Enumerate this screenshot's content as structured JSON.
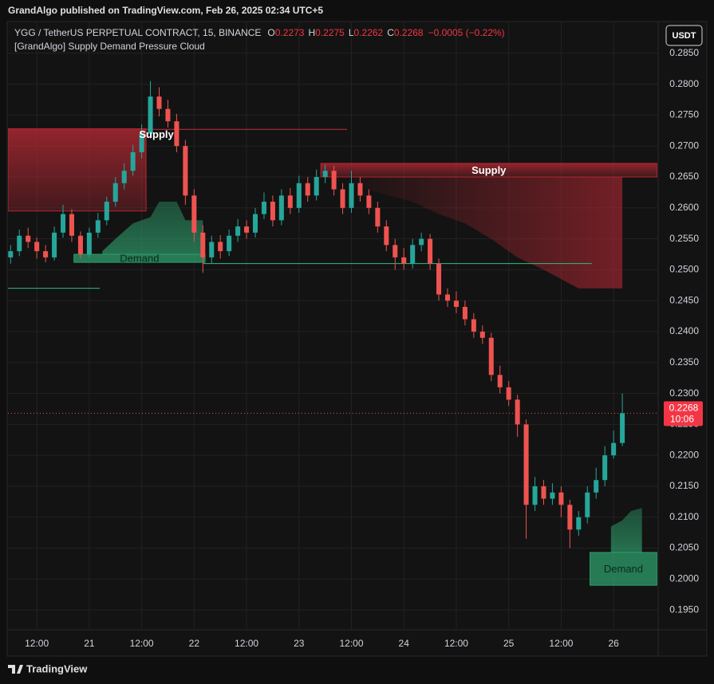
{
  "header": {
    "publisher": "GrandAlgo published on TradingView.com, Feb 26, 2025 02:34 UTC+5",
    "logo": "TradingView"
  },
  "chart_data": {
    "type": "candlestick",
    "symbol": "YGG / TetherUS PERPETUAL CONTRACT, 15, BINANCE",
    "ohlc_legend": [
      {
        "label": "O",
        "value": 0.2273
      },
      {
        "label": "H",
        "value": 0.2275
      },
      {
        "label": "L",
        "value": 0.2262
      },
      {
        "label": "C",
        "value": 0.2268
      }
    ],
    "change_label": "−0.0005 (−0.22%)",
    "indicator": "[GrandAlgo] Supply Demand Pressure Cloud",
    "currency": "USDT",
    "last_price": 0.2268,
    "countdown": "10:06",
    "up_color": "#26a69a",
    "down_color": "#ef5350",
    "grid": true,
    "xlim": [
      5.4,
      154.2
    ],
    "ylim": [
      0.1918,
      0.29
    ],
    "xticks": [
      {
        "value": 12,
        "label": "12:00"
      },
      {
        "value": 24,
        "label": "21"
      },
      {
        "value": 36,
        "label": "12:00"
      },
      {
        "value": 48,
        "label": "22"
      },
      {
        "value": 60,
        "label": "12:00"
      },
      {
        "value": 72,
        "label": "23"
      },
      {
        "value": 84,
        "label": "12:00"
      },
      {
        "value": 96,
        "label": "24"
      },
      {
        "value": 108,
        "label": "12:00"
      },
      {
        "value": 120,
        "label": "25"
      },
      {
        "value": 132,
        "label": "12:00"
      },
      {
        "value": 144,
        "label": "26"
      }
    ],
    "yticks": [
      {
        "value": 0.195,
        "label": "0.1950"
      },
      {
        "value": 0.2,
        "label": "0.2000"
      },
      {
        "value": 0.205,
        "label": "0.2050"
      },
      {
        "value": 0.21,
        "label": "0.2100"
      },
      {
        "value": 0.215,
        "label": "0.2150"
      },
      {
        "value": 0.22,
        "label": "0.2200"
      },
      {
        "value": 0.225,
        "label": "0.2250"
      },
      {
        "value": 0.23,
        "label": "0.2300"
      },
      {
        "value": 0.235,
        "label": "0.2350"
      },
      {
        "value": 0.24,
        "label": "0.2400"
      },
      {
        "value": 0.245,
        "label": "0.2450"
      },
      {
        "value": 0.25,
        "label": "0.2500"
      },
      {
        "value": 0.255,
        "label": "0.2550"
      },
      {
        "value": 0.26,
        "label": "0.2600"
      },
      {
        "value": 0.265,
        "label": "0.2650"
      },
      {
        "value": 0.27,
        "label": "0.2700"
      },
      {
        "value": 0.275,
        "label": "0.2750"
      },
      {
        "value": 0.28,
        "label": "0.2800"
      },
      {
        "value": 0.285,
        "label": "0.2850"
      }
    ],
    "x": [
      6,
      8,
      10,
      12,
      14,
      16,
      18,
      20,
      22,
      24,
      26,
      28,
      30,
      32,
      34,
      36,
      38,
      40,
      42,
      44,
      46,
      48,
      50,
      52,
      54,
      56,
      58,
      60,
      62,
      64,
      66,
      68,
      70,
      72,
      74,
      76,
      78,
      80,
      82,
      84,
      86,
      88,
      90,
      92,
      94,
      96,
      98,
      100,
      102,
      104,
      106,
      108,
      110,
      112,
      114,
      116,
      118,
      120,
      122,
      124,
      126,
      128,
      130,
      132,
      134,
      136,
      138,
      140,
      142,
      144,
      146
    ],
    "open": [
      0.252,
      0.253,
      0.2555,
      0.2545,
      0.253,
      0.252,
      0.256,
      0.259,
      0.2555,
      0.2525,
      0.256,
      0.258,
      0.261,
      0.264,
      0.266,
      0.269,
      0.272,
      0.278,
      0.276,
      0.274,
      0.27,
      0.262,
      0.256,
      0.252,
      0.2545,
      0.253,
      0.2555,
      0.257,
      0.256,
      0.259,
      0.261,
      0.258,
      0.262,
      0.26,
      0.264,
      0.262,
      0.265,
      0.266,
      0.263,
      0.26,
      0.264,
      0.262,
      0.26,
      0.257,
      0.254,
      0.252,
      0.251,
      0.254,
      0.255,
      0.251,
      0.246,
      0.245,
      0.244,
      0.242,
      0.24,
      0.239,
      0.233,
      0.231,
      0.229,
      0.225,
      0.212,
      0.215,
      0.213,
      0.214,
      0.212,
      0.208,
      0.21,
      0.214,
      0.216,
      0.22,
      0.222
    ],
    "high": [
      0.254,
      0.2565,
      0.2568,
      0.2552,
      0.254,
      0.257,
      0.2605,
      0.2598,
      0.2562,
      0.2568,
      0.2592,
      0.2618,
      0.265,
      0.2672,
      0.2702,
      0.2735,
      0.2805,
      0.2795,
      0.2775,
      0.2752,
      0.271,
      0.263,
      0.2572,
      0.2555,
      0.2556,
      0.2565,
      0.2582,
      0.258,
      0.26,
      0.2625,
      0.262,
      0.263,
      0.2632,
      0.2652,
      0.265,
      0.2662,
      0.267,
      0.2668,
      0.264,
      0.266,
      0.265,
      0.263,
      0.261,
      0.258,
      0.255,
      0.2535,
      0.255,
      0.256,
      0.2558,
      0.2518,
      0.247,
      0.2465,
      0.245,
      0.243,
      0.241,
      0.2398,
      0.2345,
      0.232,
      0.2298,
      0.2258,
      0.2165,
      0.216,
      0.2155,
      0.215,
      0.2128,
      0.211,
      0.215,
      0.218,
      0.2215,
      0.224,
      0.23
    ],
    "low": [
      0.251,
      0.2522,
      0.2535,
      0.2518,
      0.2512,
      0.2515,
      0.2552,
      0.2545,
      0.2518,
      0.252,
      0.2552,
      0.2572,
      0.2602,
      0.263,
      0.2652,
      0.268,
      0.2712,
      0.2748,
      0.273,
      0.269,
      0.2605,
      0.2545,
      0.2495,
      0.251,
      0.2518,
      0.2522,
      0.2545,
      0.255,
      0.2552,
      0.2582,
      0.257,
      0.2572,
      0.259,
      0.2592,
      0.261,
      0.2612,
      0.264,
      0.262,
      0.259,
      0.2592,
      0.261,
      0.259,
      0.256,
      0.253,
      0.25,
      0.25,
      0.2502,
      0.253,
      0.25,
      0.245,
      0.244,
      0.243,
      0.241,
      0.239,
      0.238,
      0.232,
      0.23,
      0.228,
      0.223,
      0.2065,
      0.211,
      0.212,
      0.212,
      0.21,
      0.205,
      0.207,
      0.209,
      0.213,
      0.215,
      0.2195,
      0.2215
    ],
    "close": [
      0.253,
      0.2555,
      0.2545,
      0.253,
      0.252,
      0.256,
      0.259,
      0.2555,
      0.2525,
      0.256,
      0.258,
      0.261,
      0.264,
      0.266,
      0.269,
      0.272,
      0.278,
      0.276,
      0.274,
      0.27,
      0.262,
      0.256,
      0.252,
      0.2545,
      0.253,
      0.2555,
      0.257,
      0.256,
      0.259,
      0.261,
      0.258,
      0.262,
      0.26,
      0.264,
      0.262,
      0.265,
      0.266,
      0.263,
      0.26,
      0.264,
      0.262,
      0.26,
      0.257,
      0.254,
      0.252,
      0.251,
      0.254,
      0.255,
      0.251,
      0.246,
      0.245,
      0.244,
      0.242,
      0.24,
      0.239,
      0.233,
      0.231,
      0.229,
      0.225,
      0.212,
      0.215,
      0.213,
      0.214,
      0.212,
      0.208,
      0.21,
      0.214,
      0.216,
      0.22,
      0.222,
      0.2268
    ],
    "zones": [
      {
        "label": "Supply",
        "kind": "supply",
        "top": 0.2728,
        "bottom": 0.2595,
        "x0": 5.4,
        "x1": 37,
        "color": "#b22833"
      },
      {
        "label": "Demand",
        "kind": "demand",
        "top": 0.2525,
        "bottom": 0.2512,
        "x0": 20.5,
        "x1": 50.5,
        "color": "#2e9e6b"
      },
      {
        "label": "Supply",
        "kind": "supply",
        "top": 0.2672,
        "bottom": 0.265,
        "x0": 77,
        "x1": 153.9,
        "color": "#b22833"
      },
      {
        "label": "Demand",
        "kind": "demand",
        "top": 0.2043,
        "bottom": 0.199,
        "x0": 138.6,
        "x1": 153.9,
        "color": "#2e9e6b"
      }
    ],
    "clouds": [
      {
        "zone": 1,
        "x": [
          27,
          30,
          34,
          38,
          40,
          44,
          46,
          50
        ],
        "y": [
          0.253,
          0.255,
          0.2575,
          0.2585,
          0.261,
          0.261,
          0.258,
          0.258
        ]
      },
      {
        "zone": 2,
        "x": [
          84,
          90,
          98,
          104,
          110,
          116,
          122,
          128,
          136,
          146
        ],
        "y": [
          0.264,
          0.2625,
          0.261,
          0.259,
          0.2575,
          0.255,
          0.252,
          0.25,
          0.247,
          0.247
        ]
      },
      {
        "zone": 3,
        "x": [
          143.4,
          146,
          148,
          150.5
        ],
        "y": [
          0.2085,
          0.2095,
          0.211,
          0.2115
        ]
      }
    ],
    "levels": [
      {
        "value": 0.2727,
        "x0": 37,
        "x1": 83,
        "color": "#c2303c"
      },
      {
        "value": 0.251,
        "x0": 50,
        "x1": 139,
        "color": "#2ebd85"
      },
      {
        "value": 0.247,
        "x0": 5.4,
        "x1": 26.4,
        "color": "#2ebd85"
      }
    ]
  }
}
